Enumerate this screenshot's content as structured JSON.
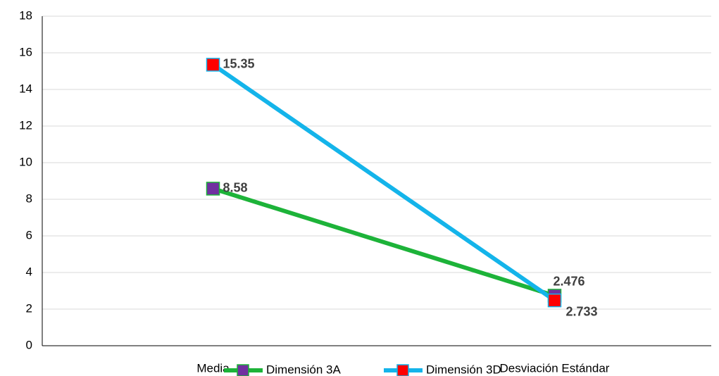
{
  "chart_data": {
    "type": "line",
    "categories": [
      "Media",
      "Desviación Estándar"
    ],
    "series": [
      {
        "name": "Dimensión 3A",
        "color": "#1db339",
        "marker_color": "#7030a0",
        "values": [
          8.58,
          2.733
        ]
      },
      {
        "name": "Dimensión 3D",
        "color": "#14b4ea",
        "marker_color": "#ff0000",
        "values": [
          15.35,
          2.476
        ]
      }
    ],
    "ylim": [
      0,
      18
    ],
    "yticks": [
      0,
      2,
      4,
      6,
      8,
      10,
      12,
      14,
      16,
      18
    ],
    "grid": true,
    "legend": "bottom"
  }
}
